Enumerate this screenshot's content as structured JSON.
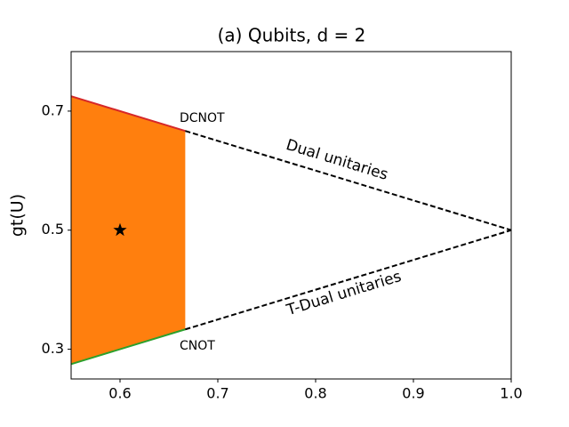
{
  "chart_data": {
    "type": "line",
    "title": "(a) Qubits, d = 2",
    "ylabel": "gt(U)",
    "xlim": [
      0.55,
      1.0
    ],
    "ylim": [
      0.25,
      0.8
    ],
    "xticks": [
      0.6,
      0.7,
      0.8,
      0.9,
      {
        "value": 1.0,
        "label": "1.0"
      }
    ],
    "yticks": [
      0.3,
      0.5,
      0.7
    ],
    "annotations": [
      "DCNOT",
      "CNOT",
      "Dual unitaries",
      "T-Dual unitaries"
    ],
    "series": [
      {
        "style": "area",
        "color": "#ff7f0e",
        "x": [
          0.55,
          0.6667
        ],
        "values": [
          0.725,
          0.6667
        ],
        "lower": [
          0.275,
          0.3333
        ]
      },
      {
        "style": "solid",
        "color": "#d62728",
        "x": [
          0.55,
          0.6667
        ],
        "values": [
          0.725,
          0.6667
        ]
      },
      {
        "style": "solid",
        "color": "#2ca02c",
        "x": [
          0.55,
          0.6667
        ],
        "values": [
          0.275,
          0.3333
        ]
      },
      {
        "style": "dashed",
        "color": "#000000",
        "x": [
          0.6667,
          1.0
        ],
        "values": [
          0.6667,
          0.5
        ]
      },
      {
        "style": "dashed",
        "color": "#000000",
        "x": [
          0.6667,
          1.0
        ],
        "values": [
          0.3333,
          0.5
        ]
      },
      {
        "style": "star",
        "color": "#000000",
        "x": [
          0.6
        ],
        "values": [
          0.5
        ]
      }
    ]
  }
}
